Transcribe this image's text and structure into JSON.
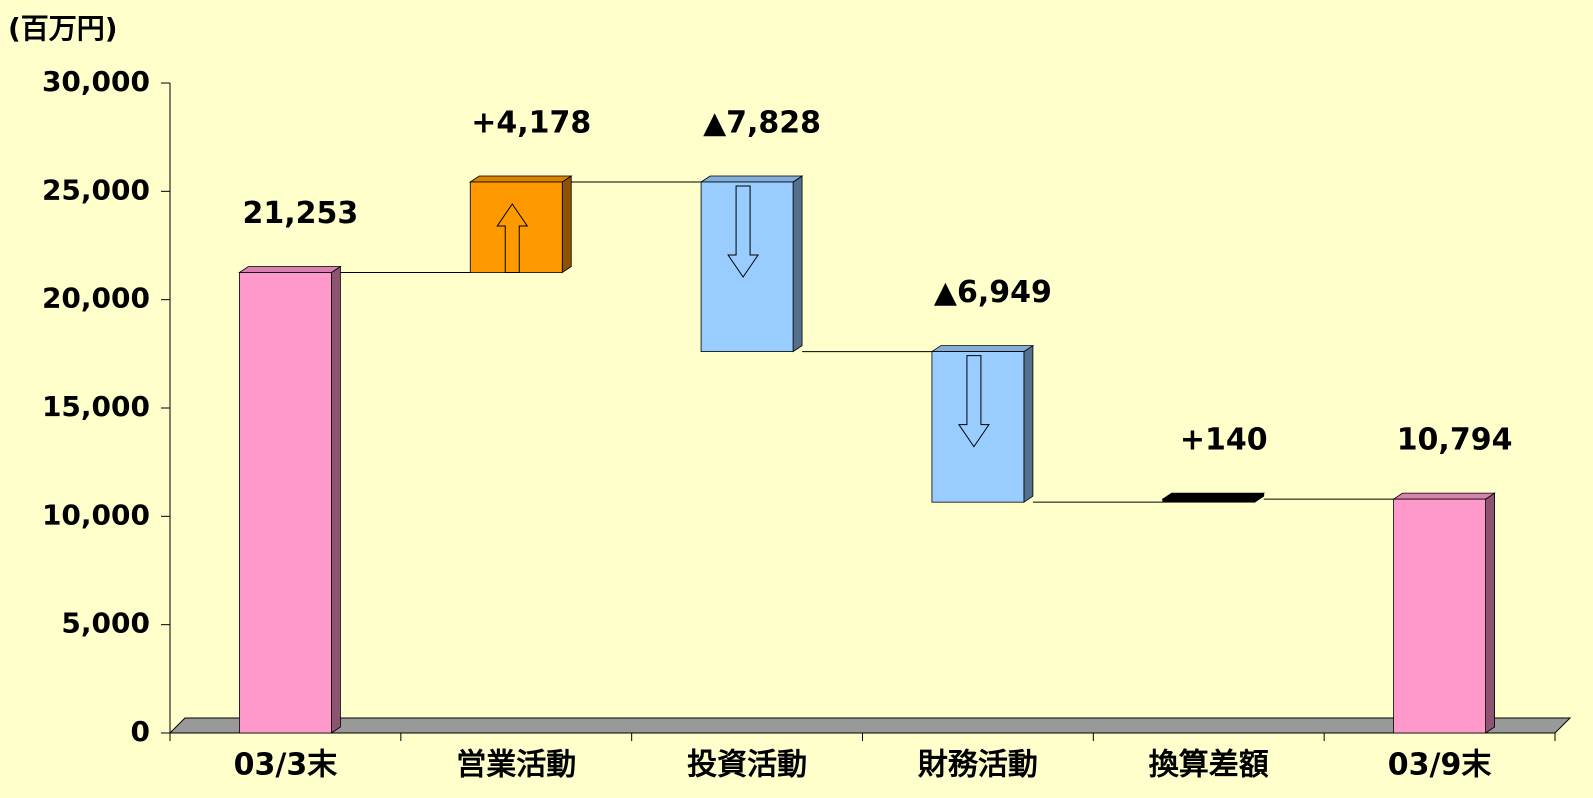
{
  "chart_data": {
    "type": "waterfall",
    "unit_label": "(百万円)",
    "categories": [
      "03/3末",
      "営業活動",
      "投資活動",
      "財務活動",
      "換算差額",
      "03/9末"
    ],
    "measures": [
      "absolute",
      "relative",
      "relative",
      "relative",
      "relative",
      "absolute"
    ],
    "values": [
      21253,
      4178,
      -7828,
      -6949,
      140,
      10794
    ],
    "value_labels": [
      "21,253",
      "+4,178",
      "▲7,828",
      "▲6,949",
      "+140",
      "10,794"
    ],
    "colors": [
      "#ff99cc",
      "#ff9900",
      "#99ccff",
      "#99ccff",
      "#000000",
      "#ff99cc"
    ],
    "ylim": [
      0,
      30000
    ],
    "yticks": [
      0,
      {
        "value": 5000,
        "label": "5,000"
      },
      {
        "value": 10000,
        "label": "10,000"
      },
      {
        "value": 15000,
        "label": "15,000"
      },
      {
        "value": 20000,
        "label": "20,000"
      },
      {
        "value": 25000,
        "label": "25,000"
      },
      {
        "value": 30000,
        "label": "30,000"
      }
    ]
  }
}
